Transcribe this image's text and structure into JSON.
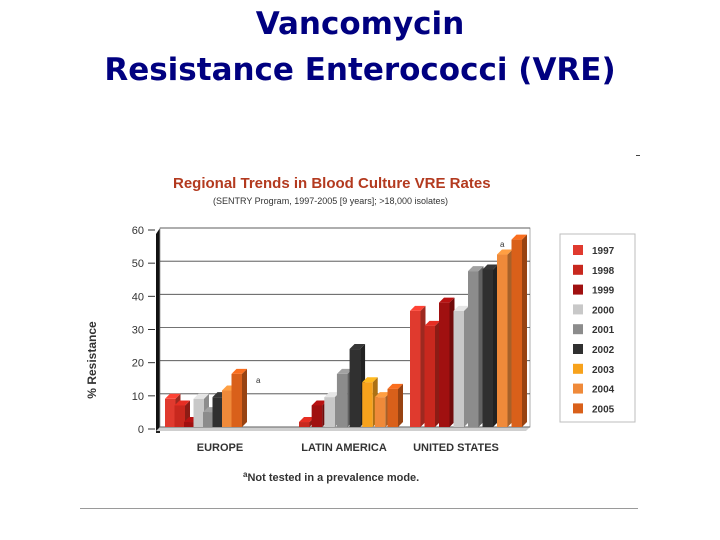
{
  "slide": {
    "title_line1": "Vancomycin",
    "title_line2": "Resistance Enterococci (VRE)",
    "title_color": "#000080"
  },
  "chart_data": {
    "type": "bar",
    "title": "Regional Trends in Blood Culture VRE Rates",
    "subtitle": "(SENTRY Program, 1997-2005 [9 years]; >18,000 isolates)",
    "ylabel": "% Resistance",
    "xlabel": "",
    "ylim": [
      0,
      60
    ],
    "yticks": [
      0,
      10,
      20,
      30,
      40,
      50,
      60
    ],
    "categories": [
      "EUROPE",
      "LATIN AMERICA",
      "UNITED STATES"
    ],
    "series": [
      {
        "name": "1997",
        "color": "#e03a2e",
        "values": [
          8.5,
          null,
          35
        ]
      },
      {
        "name": "1998",
        "color": "#c8281e",
        "values": [
          6.5,
          1.5,
          30.5
        ]
      },
      {
        "name": "1999",
        "color": "#a01010",
        "values": [
          1.5,
          6.5,
          37.5
        ]
      },
      {
        "name": "2000",
        "color": "#c8c8c8",
        "values": [
          8.5,
          9,
          35
        ]
      },
      {
        "name": "2001",
        "color": "#8c8c8c",
        "values": [
          4.5,
          16,
          47
        ]
      },
      {
        "name": "2002",
        "color": "#303030",
        "values": [
          9,
          23.5,
          47.5
        ]
      },
      {
        "name": "2003",
        "color": "#f7a21c",
        "values": [
          null,
          13.5,
          null
        ]
      },
      {
        "name": "2004",
        "color": "#ef8a3a",
        "values": [
          11,
          9,
          52
        ]
      },
      {
        "name": "2005",
        "color": "#d9601a",
        "values": [
          16,
          11.5,
          56.5
        ]
      }
    ],
    "annotations": [
      {
        "text": "a",
        "category": "EUROPE",
        "series": "2004"
      },
      {
        "text": "a",
        "category": "UNITED STATES",
        "series": "2004"
      }
    ],
    "footnote": "aNot tested in a prevalence mode.",
    "legend_position": "right",
    "grid": true
  }
}
